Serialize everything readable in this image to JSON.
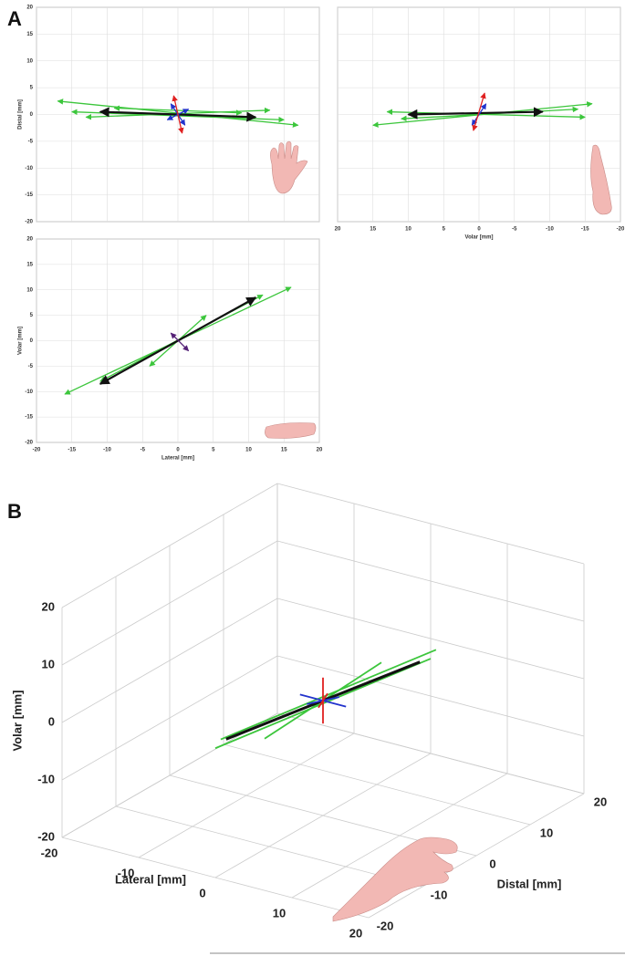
{
  "panel_labels": [
    "A",
    "B"
  ],
  "chart_data": [
    {
      "type": "vector2d",
      "ylabel": "Distal [mm]",
      "xlim": [
        -20,
        20
      ],
      "ylim": [
        -20,
        20
      ],
      "xticks": [
        -20,
        -15,
        -10,
        -5,
        0,
        5,
        10,
        15,
        20
      ],
      "yticks": [
        -20,
        -15,
        -10,
        -5,
        0,
        5,
        10,
        15,
        20
      ],
      "xtick_labels": false,
      "ytick_labels": true,
      "grid": true,
      "series": [
        {
          "color": "#3cc63c",
          "x": [
            -17,
            17
          ],
          "y": [
            2.5,
            -2
          ]
        },
        {
          "color": "#3cc63c",
          "x": [
            -15,
            15
          ],
          "y": [
            0.5,
            -1
          ]
        },
        {
          "color": "#3cc63c",
          "x": [
            -13,
            13
          ],
          "y": [
            -0.5,
            0.8
          ]
        },
        {
          "color": "#3cc63c",
          "x": [
            -9,
            9
          ],
          "y": [
            1.2,
            0.3
          ]
        },
        {
          "color": "#111111",
          "x": [
            -11,
            11
          ],
          "y": [
            0.5,
            -0.5
          ]
        },
        {
          "color": "#2233cc",
          "x": [
            -1,
            1
          ],
          "y": [
            2,
            -2
          ]
        },
        {
          "color": "#2233cc",
          "x": [
            -1.5,
            1.5
          ],
          "y": [
            -1,
            1
          ]
        },
        {
          "color": "#e02020",
          "x": [
            -0.6,
            0.6
          ],
          "y": [
            3.5,
            -3.5
          ]
        }
      ]
    },
    {
      "type": "vector2d",
      "xlabel": "Volar [mm]",
      "xlim": [
        20,
        -20
      ],
      "ylim": [
        -20,
        20
      ],
      "xticks": [
        20,
        15,
        10,
        5,
        0,
        -5,
        -10,
        -15,
        -20
      ],
      "yticks": [
        -20,
        -15,
        -10,
        -5,
        0,
        5,
        10,
        15,
        20
      ],
      "xtick_labels": true,
      "ytick_labels": false,
      "grid": true,
      "series": [
        {
          "color": "#3cc63c",
          "x": [
            15,
            -16
          ],
          "y": [
            -2,
            2
          ]
        },
        {
          "color": "#3cc63c",
          "x": [
            13,
            -15
          ],
          "y": [
            0.5,
            -0.5
          ]
        },
        {
          "color": "#3cc63c",
          "x": [
            11,
            -14
          ],
          "y": [
            -0.8,
            1
          ]
        },
        {
          "color": "#111111",
          "x": [
            10,
            -9
          ],
          "y": [
            0,
            0.5
          ]
        },
        {
          "color": "#2233cc",
          "x": [
            1,
            -1
          ],
          "y": [
            -2,
            2
          ]
        },
        {
          "color": "#e02020",
          "x": [
            0.8,
            -0.8
          ],
          "y": [
            -3,
            4
          ]
        }
      ]
    },
    {
      "type": "vector2d",
      "xlabel": "Lateral [mm]",
      "ylabel": "Volar [mm]",
      "xlim": [
        -20,
        20
      ],
      "ylim": [
        -20,
        20
      ],
      "xticks": [
        -20,
        -15,
        -10,
        -5,
        0,
        5,
        10,
        15,
        20
      ],
      "yticks": [
        -20,
        -15,
        -10,
        -5,
        0,
        5,
        10,
        15,
        20
      ],
      "xtick_labels": true,
      "ytick_labels": true,
      "grid": true,
      "series": [
        {
          "color": "#3cc63c",
          "x": [
            -16,
            16
          ],
          "y": [
            -10.5,
            10.5
          ]
        },
        {
          "color": "#3cc63c",
          "x": [
            -11,
            12
          ],
          "y": [
            -8,
            9
          ]
        },
        {
          "color": "#3cc63c",
          "x": [
            -4,
            4
          ],
          "y": [
            -5,
            5
          ]
        },
        {
          "color": "#111111",
          "x": [
            -11,
            11
          ],
          "y": [
            -8.5,
            8.5
          ]
        },
        {
          "color": "#552277",
          "x": [
            -1,
            1.5
          ],
          "y": [
            1.5,
            -2
          ]
        }
      ]
    },
    {
      "type": "vector3d",
      "xlabel": "Lateral [mm]",
      "ylabel": "Distal [mm]",
      "zlabel": "Volar [mm]",
      "xlim": [
        -20,
        20
      ],
      "ylim": [
        -20,
        20
      ],
      "zlim": [
        -20,
        20
      ],
      "xticks": [
        -20,
        -10,
        0,
        10,
        20
      ],
      "yticks": [
        -20,
        -10,
        0,
        10,
        20
      ],
      "zticks": [
        -20,
        -10,
        0,
        10,
        20
      ],
      "series": [
        {
          "color": "#3cc63c",
          "x": [
            0,
            0
          ],
          "y": [
            -20,
            20
          ],
          "z": [
            2.5,
            -3.5
          ]
        },
        {
          "color": "#3cc63c",
          "x": [
            0,
            0
          ],
          "y": [
            -19,
            21
          ],
          "z": [
            3.5,
            -2.5
          ]
        },
        {
          "color": "#3cc63c",
          "x": [
            -2,
            2
          ],
          "y": [
            -8,
            8
          ],
          "z": [
            -3,
            3
          ]
        },
        {
          "color": "#111111",
          "x": [
            0,
            0
          ],
          "y": [
            -18,
            18
          ],
          "z": [
            3,
            -3
          ]
        },
        {
          "color": "#2233cc",
          "x": [
            -3,
            3
          ],
          "y": [
            0,
            0
          ],
          "z": [
            0,
            0
          ]
        },
        {
          "color": "#2233cc",
          "x": [
            0,
            0
          ],
          "y": [
            -3,
            3
          ],
          "z": [
            1,
            -1
          ]
        },
        {
          "color": "#e02020",
          "x": [
            0,
            0
          ],
          "y": [
            0,
            0
          ],
          "z": [
            -4,
            4
          ]
        },
        {
          "color": "#e02020",
          "x": [
            -2,
            2
          ],
          "y": [
            2,
            -2
          ],
          "z": [
            -3,
            3
          ]
        }
      ]
    }
  ]
}
